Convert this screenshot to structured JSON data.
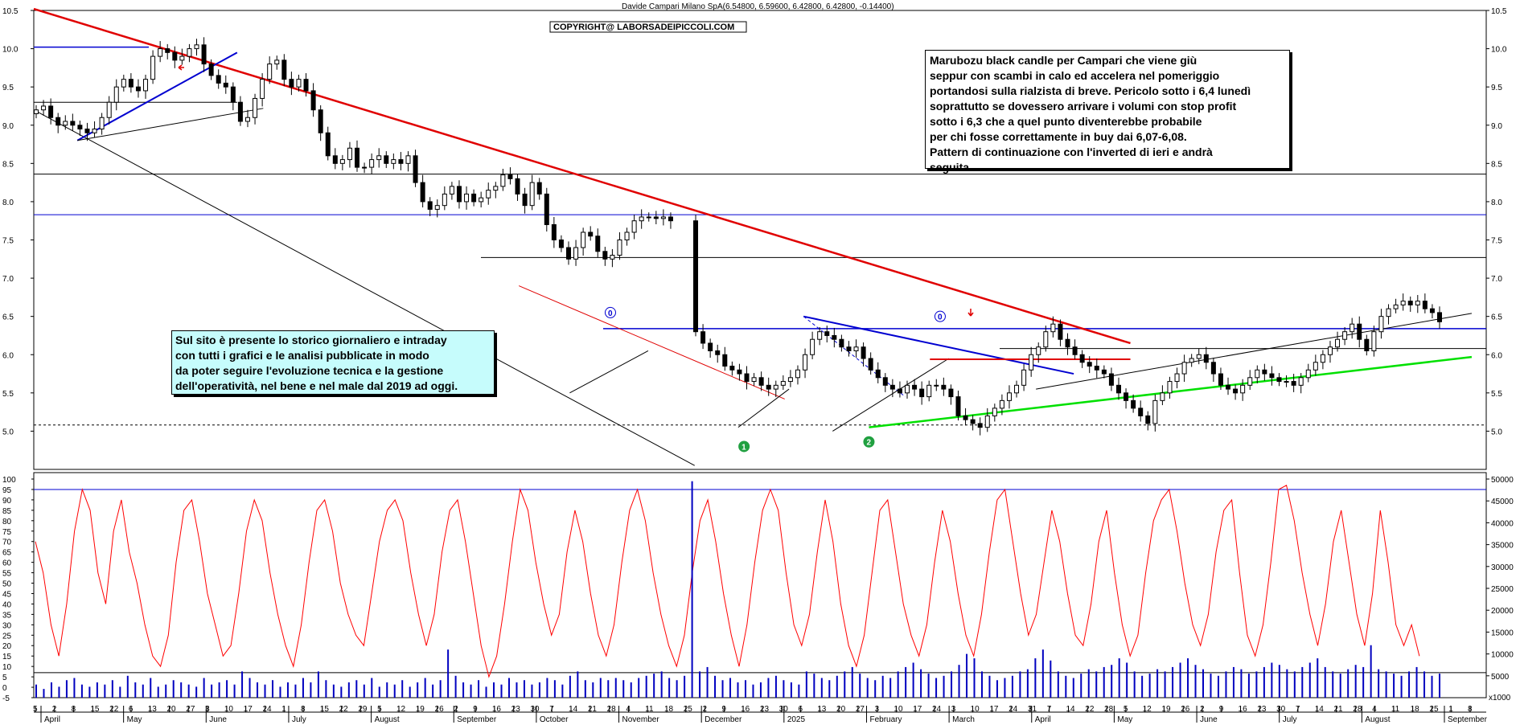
{
  "chart_data": {
    "type": "candlestick",
    "title": "Davide Campari Milano SpA(6.54800, 6.59600, 6.42800, 6.42800, -0.14400)",
    "copyright": "COPYRIGHT@ LABORSADEIPICCOLI.COM",
    "price_axis": {
      "ylim": [
        4.5,
        10.5
      ],
      "ticks": [
        "10.5",
        "10.0",
        "9.5",
        "9.0",
        "8.5",
        "8.0",
        "7.5",
        "7.0",
        "6.5",
        "6.0",
        "5.5",
        "5.0"
      ]
    },
    "oscillator_axis": {
      "ylim": [
        -5,
        100
      ],
      "ticks": [
        "100",
        "95",
        "90",
        "85",
        "80",
        "75",
        "70",
        "65",
        "60",
        "55",
        "50",
        "45",
        "40",
        "35",
        "30",
        "25",
        "20",
        "15",
        "10",
        "5",
        "0",
        "-5"
      ]
    },
    "volume_axis": {
      "ylim": [
        0,
        50000
      ],
      "ticks": [
        "50000",
        "45000",
        "40000",
        "35000",
        "30000",
        "25000",
        "20000",
        "15000",
        "10000",
        "5000"
      ],
      "unit": "x1000"
    },
    "months": [
      "April",
      "May",
      "June",
      "July",
      "August",
      "September",
      "October",
      "November",
      "December",
      "2025",
      "February",
      "March",
      "April",
      "May",
      "June",
      "July",
      "August",
      "September"
    ],
    "days": [
      "5",
      "2",
      "8",
      "15",
      "22",
      "6",
      "13",
      "20",
      "27",
      "3",
      "10",
      "17",
      "24",
      "1",
      "8",
      "15",
      "22",
      "29",
      "5",
      "12",
      "19",
      "26",
      "2",
      "9",
      "16",
      "23",
      "30",
      "7",
      "14",
      "21",
      "28",
      "4",
      "11",
      "18",
      "25",
      "2",
      "9",
      "16",
      "23",
      "30",
      "6",
      "13",
      "20",
      "27",
      "3",
      "10",
      "17",
      "24",
      "3",
      "10",
      "17",
      "24",
      "31",
      "7",
      "14",
      "22",
      "28",
      "5",
      "12",
      "19",
      "26",
      "2",
      "9",
      "16",
      "23",
      "30",
      "7",
      "14",
      "21",
      "28",
      "4",
      "11",
      "18",
      "25",
      "1",
      "8"
    ],
    "closes": [
      9.2,
      9.25,
      9.1,
      9.0,
      9.05,
      9.0,
      8.95,
      8.9,
      8.95,
      9.1,
      9.3,
      9.5,
      9.6,
      9.5,
      9.45,
      9.6,
      9.9,
      10.0,
      9.95,
      9.85,
      9.9,
      10.0,
      10.05,
      9.8,
      9.65,
      9.55,
      9.5,
      9.3,
      9.05,
      9.1,
      9.35,
      9.6,
      9.8,
      9.85,
      9.6,
      9.5,
      9.6,
      9.45,
      9.2,
      8.9,
      8.6,
      8.5,
      8.55,
      8.7,
      8.45,
      8.45,
      8.55,
      8.6,
      8.5,
      8.55,
      8.5,
      8.6,
      8.25,
      8.0,
      7.9,
      7.95,
      8.1,
      8.2,
      8.0,
      8.1,
      8.0,
      8.05,
      8.15,
      8.2,
      8.35,
      8.3,
      8.1,
      7.95,
      8.25,
      8.1,
      7.7,
      7.5,
      7.4,
      7.25,
      7.4,
      7.6,
      7.55,
      7.35,
      7.25,
      7.3,
      7.5,
      7.6,
      7.75,
      7.8,
      7.8,
      7.78,
      7.8,
      7.75,
      6.3,
      6.15,
      6.05,
      6.0,
      5.85,
      5.8,
      5.75,
      5.65,
      5.7,
      5.6,
      5.55,
      5.6,
      5.65,
      5.7,
      5.8,
      6.0,
      6.2,
      6.3,
      6.25,
      6.2,
      6.1,
      6.05,
      6.1,
      5.95,
      5.8,
      5.7,
      5.6,
      5.55,
      5.5,
      5.6,
      5.55,
      5.45,
      5.6,
      5.6,
      5.55,
      5.45,
      5.2,
      5.15,
      5.1,
      5.05,
      5.2,
      5.3,
      5.4,
      5.5,
      5.6,
      5.8,
      6.0,
      6.1,
      6.3,
      6.4,
      6.2,
      6.1,
      6.0,
      5.9,
      5.85,
      5.8,
      5.75,
      5.6,
      5.5,
      5.4,
      5.3,
      5.2,
      5.1,
      5.4,
      5.5,
      5.65,
      5.75,
      5.9,
      5.95,
      6.0,
      5.9,
      5.75,
      5.6,
      5.55,
      5.5,
      5.6,
      5.7,
      5.8,
      5.75,
      5.7,
      5.65,
      5.65,
      5.6,
      5.7,
      5.8,
      5.9,
      6.0,
      6.1,
      6.2,
      6.3,
      6.4,
      6.2,
      6.05,
      6.3,
      6.5,
      6.6,
      6.65,
      6.7,
      6.65,
      6.7,
      6.6,
      6.55,
      6.43
    ],
    "oscillator": [
      70,
      55,
      30,
      15,
      40,
      75,
      95,
      85,
      55,
      40,
      75,
      90,
      65,
      50,
      30,
      15,
      10,
      25,
      60,
      85,
      90,
      70,
      45,
      30,
      15,
      20,
      45,
      75,
      90,
      80,
      55,
      35,
      20,
      10,
      30,
      60,
      85,
      90,
      75,
      50,
      35,
      25,
      20,
      45,
      70,
      85,
      90,
      80,
      55,
      35,
      20,
      35,
      65,
      85,
      90,
      70,
      45,
      20,
      5,
      15,
      40,
      70,
      95,
      85,
      60,
      40,
      25,
      35,
      65,
      85,
      70,
      45,
      25,
      15,
      30,
      60,
      85,
      95,
      80,
      55,
      35,
      20,
      10,
      25,
      55,
      80,
      90,
      70,
      45,
      25,
      10,
      30,
      60,
      85,
      95,
      85,
      55,
      30,
      20,
      35,
      65,
      90,
      70,
      40,
      20,
      10,
      25,
      55,
      85,
      90,
      65,
      40,
      25,
      15,
      30,
      60,
      85,
      70,
      45,
      25,
      15,
      35,
      65,
      90,
      95,
      70,
      45,
      25,
      35,
      60,
      85,
      70,
      45,
      25,
      20,
      40,
      70,
      85,
      55,
      30,
      15,
      25,
      55,
      80,
      90,
      95,
      75,
      50,
      30,
      20,
      35,
      65,
      85,
      90,
      55,
      25,
      15,
      30,
      60,
      95,
      97,
      80,
      55,
      35,
      20,
      40,
      70,
      85,
      60,
      35,
      20,
      45,
      85,
      60,
      30,
      20,
      30,
      15
    ],
    "volume": [
      6,
      4,
      7,
      5,
      8,
      9,
      6,
      5,
      7,
      6,
      8,
      5,
      10,
      7,
      6,
      9,
      5,
      6,
      8,
      7,
      6,
      5,
      9,
      6,
      7,
      8,
      6,
      12,
      9,
      7,
      6,
      8,
      5,
      7,
      6,
      9,
      7,
      12,
      8,
      6,
      5,
      7,
      8,
      6,
      9,
      5,
      7,
      6,
      8,
      5,
      7,
      9,
      6,
      8,
      22,
      10,
      7,
      6,
      8,
      5,
      7,
      6,
      9,
      7,
      8,
      6,
      7,
      9,
      8,
      6,
      10,
      12,
      8,
      7,
      9,
      8,
      9,
      8,
      7,
      9,
      10,
      11,
      12,
      9,
      8,
      10,
      99,
      12,
      14,
      10,
      8,
      9,
      7,
      8,
      6,
      7,
      9,
      10,
      8,
      7,
      6,
      12,
      11,
      9,
      8,
      10,
      12,
      14,
      11,
      9,
      8,
      10,
      9,
      12,
      14,
      16,
      13,
      11,
      9,
      10,
      12,
      15,
      20,
      18,
      12,
      10,
      8,
      9,
      10,
      12,
      13,
      18,
      22,
      17,
      12,
      10,
      9,
      11,
      13,
      12,
      14,
      15,
      18,
      16,
      12,
      10,
      11,
      13,
      12,
      14,
      16,
      18,
      15,
      13,
      11,
      10,
      12,
      14,
      13,
      11,
      12,
      14,
      16,
      15,
      13,
      12,
      14,
      16,
      18,
      14,
      12,
      11,
      13,
      15,
      14,
      24,
      13,
      12,
      11,
      10,
      12,
      14,
      12,
      10,
      11
    ],
    "annotations": [
      {
        "label": "0",
        "price": 6.55
      },
      {
        "label": "0",
        "price": 6.5
      },
      {
        "label": "1",
        "price": 4.8
      },
      {
        "label": "2",
        "price": 4.86
      }
    ]
  },
  "notes": {
    "top_right": [
      "Marubozu black candle per Campari che viene giù",
      "seppur con scambi in calo ed accelera nel pomeriggio",
      "portandosi sulla rialzista di breve. Pericolo sotto i 6,4 lunedì",
      "soprattutto se dovessero arrivare i volumi con stop profit",
      "sotto i 6,3 che a quel punto diventerebbe probabile",
      "per chi fosse correttamente in buy dai 6,07-6,08.",
      "Pattern di continuazione con l'inverted di ieri e andrà",
      "seguita."
    ],
    "left": [
      "Sul sito è presente lo storico giornaliero e intraday",
      "con tutti i grafici e le analisi pubblicate in modo",
      "da poter seguire l'evoluzione tecnica e la gestione",
      "dell'operatività, nel bene e nel male dal 2019 ad oggi."
    ]
  },
  "colors": {
    "candle": "#000000",
    "trend_red": "#e00000",
    "trend_blue": "#0000d0",
    "trend_green": "#00e000",
    "oscillator": "#ff0000",
    "volume": "#0000c0",
    "note_left_bg": "#c6fcfc"
  }
}
